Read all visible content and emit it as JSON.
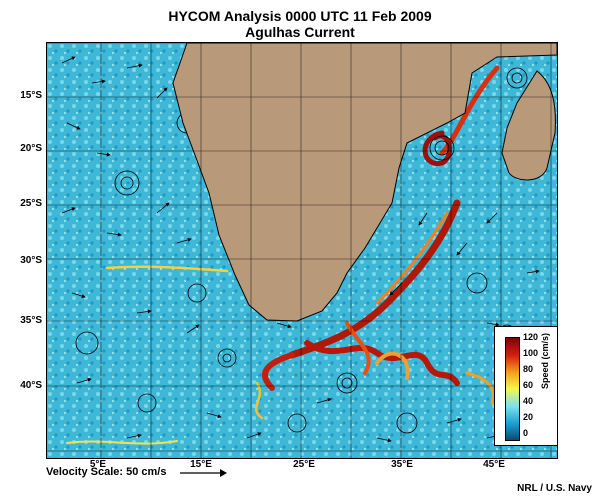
{
  "title": "HYCOM Analysis 0000 UTC 11 Feb 2009",
  "subtitle": "Agulhas Current",
  "lat_labels": [
    "15°S",
    "20°S",
    "25°S",
    "30°S",
    "35°S",
    "40°S"
  ],
  "lon_labels": [
    "5°E",
    "15°E",
    "25°E",
    "35°E",
    "45°E"
  ],
  "velocity_scale": "Velocity Scale: 50 cm/s",
  "credit": "NRL / U.S. Navy",
  "colorbar": {
    "label": "Speed (cm/s)",
    "ticks": [
      "120",
      "100",
      "80",
      "60",
      "40",
      "20",
      "0"
    ]
  },
  "colors": {
    "land": "#b89a7a",
    "ocean_slow": "#3fb8d8",
    "ocean_fast": "#8a0a05",
    "grid": "#000000"
  }
}
